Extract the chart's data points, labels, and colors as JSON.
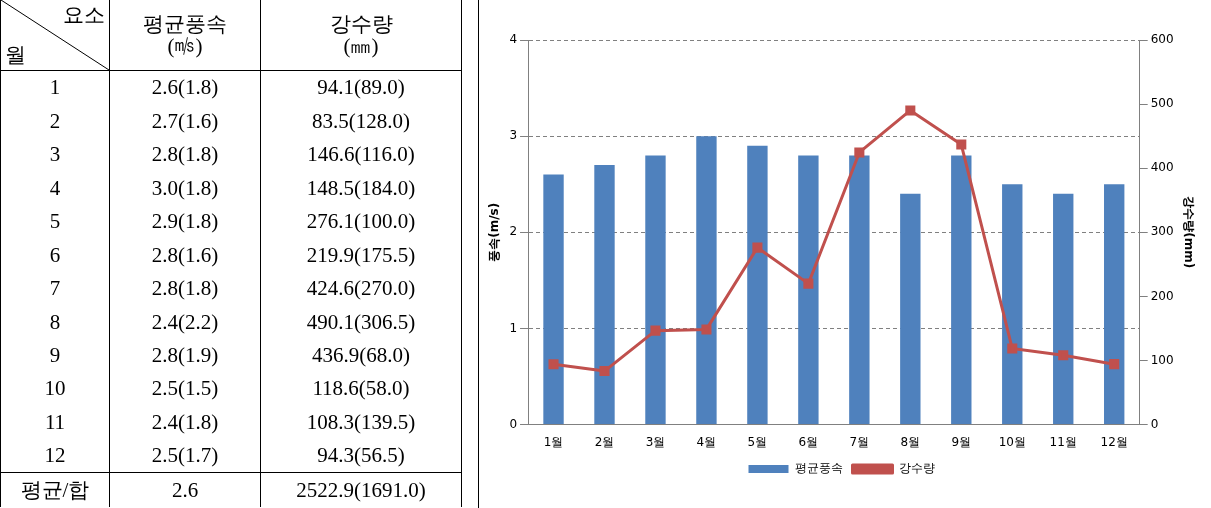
{
  "chart_data": {
    "type": "bar",
    "categories": [
      "1월",
      "2월",
      "3월",
      "4월",
      "5월",
      "6월",
      "7월",
      "8월",
      "9월",
      "10월",
      "11월",
      "12월"
    ],
    "ylabel": "풍속(m/s)",
    "y2label": "강수량(mm)",
    "ylim": [
      0,
      4
    ],
    "yticks": [
      0,
      1,
      2,
      3,
      4
    ],
    "y2lim": [
      0,
      600
    ],
    "y2ticks": [
      0,
      100,
      200,
      300,
      400,
      500,
      600
    ],
    "grid": "y",
    "legend": "bottom",
    "annotations": [
      "요소",
      "월",
      "평균풍속\n(㎧)",
      "강수량\n(㎜)",
      "1",
      "2.6(1.8)",
      "94.1(89.0)",
      "2",
      "2.7(1.6)",
      "83.5(128.0)",
      "3",
      "2.8(1.8)",
      "146.6(116.0)",
      "4",
      "3.0(1.8)",
      "148.5(184.0)",
      "5",
      "2.9(1.8)",
      "276.1(100.0)",
      "6",
      "2.8(1.6)",
      "219.9(175.5)",
      "7",
      "2.8(1.8)",
      "424.6(270.0)",
      "8",
      "2.4(2.2)",
      "490.1(306.5)",
      "9",
      "2.8(1.9)",
      "436.9(68.0)",
      "10",
      "2.5(1.5)",
      "118.6(58.0)",
      "11",
      "2.4(1.8)",
      "108.3(139.5)",
      "12",
      "2.5(1.7)",
      "94.3(56.5)",
      "평균/합",
      "2.6",
      "2522.9(1691.0)"
    ],
    "series": [
      {
        "name": "평균풍속",
        "color": "#4f81bd",
        "values": [
          2.6,
          2.7,
          2.8,
          3.0,
          2.9,
          2.8,
          2.8,
          2.4,
          2.8,
          2.5,
          2.4,
          2.5
        ]
      },
      {
        "name": "강수량",
        "type": "line",
        "axis": "y2",
        "color": "#c0504d",
        "marker": "square",
        "line_style": "solid",
        "values": [
          94.1,
          83.5,
          146.6,
          148.5,
          276.1,
          219.9,
          424.6,
          490.1,
          436.9,
          118.6,
          108.3,
          94.3
        ]
      }
    ]
  }
}
